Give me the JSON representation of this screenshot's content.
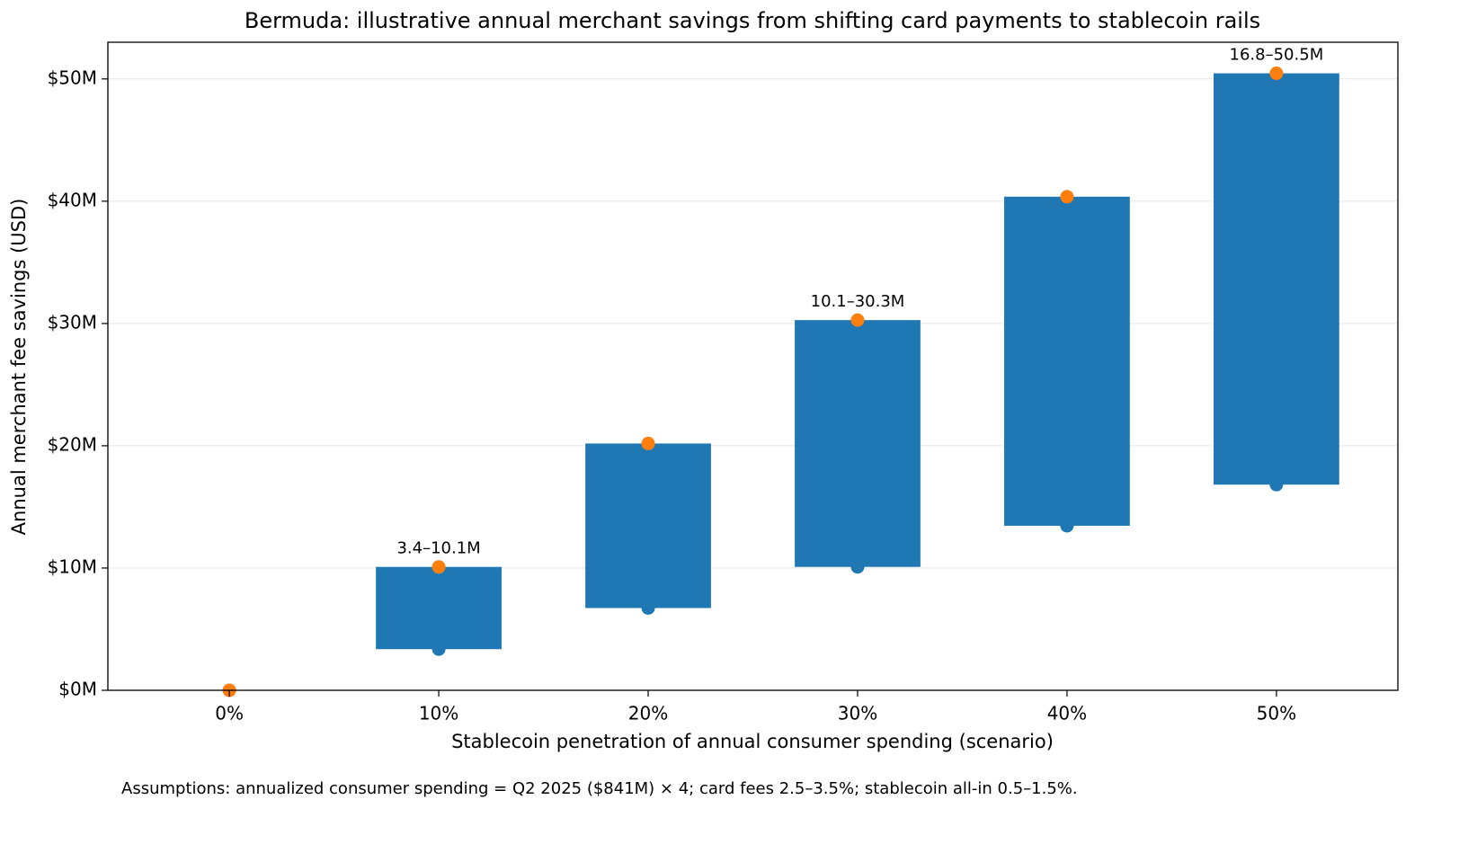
{
  "chart_data": {
    "type": "rangebar",
    "title": "Bermuda: illustrative annual merchant savings from shifting card payments to stablecoin rails",
    "x_label": "Stablecoin penetration of annual consumer spending (scenario)",
    "y_label": "Annual merchant fee savings (USD)",
    "footnote": "Assumptions: annualized consumer spending = Q2 2025 ($841M) × 4; card fees 2.5–3.5%; stablecoin all-in 0.5–1.5%.",
    "categories": [
      "0%",
      "10%",
      "20%",
      "30%",
      "40%",
      "50%"
    ],
    "bar_color": "#1f77b4",
    "series": [
      {
        "color": "#1f77b4",
        "values": [
          0,
          3364000,
          6728000,
          10092000,
          13456000,
          16820000
        ]
      },
      {
        "color": "#ff7f0e",
        "values": [
          0,
          10092000,
          20184000,
          30276000,
          40368000,
          50460000
        ]
      }
    ],
    "value_labels": [
      null,
      "3.4–10.1M",
      null,
      "10.1–30.3M",
      null,
      "16.8–50.5M"
    ],
    "ylim": [
      0,
      53000000
    ],
    "yticks": [
      {
        "value": 0,
        "label": "$0M"
      },
      {
        "value": 10000000,
        "label": "$10M"
      },
      {
        "value": 20000000,
        "label": "$20M"
      },
      {
        "value": 30000000,
        "label": "$30M"
      },
      {
        "value": 40000000,
        "label": "$40M"
      },
      {
        "value": 50000000,
        "label": "$50M"
      }
    ],
    "grid": true
  }
}
